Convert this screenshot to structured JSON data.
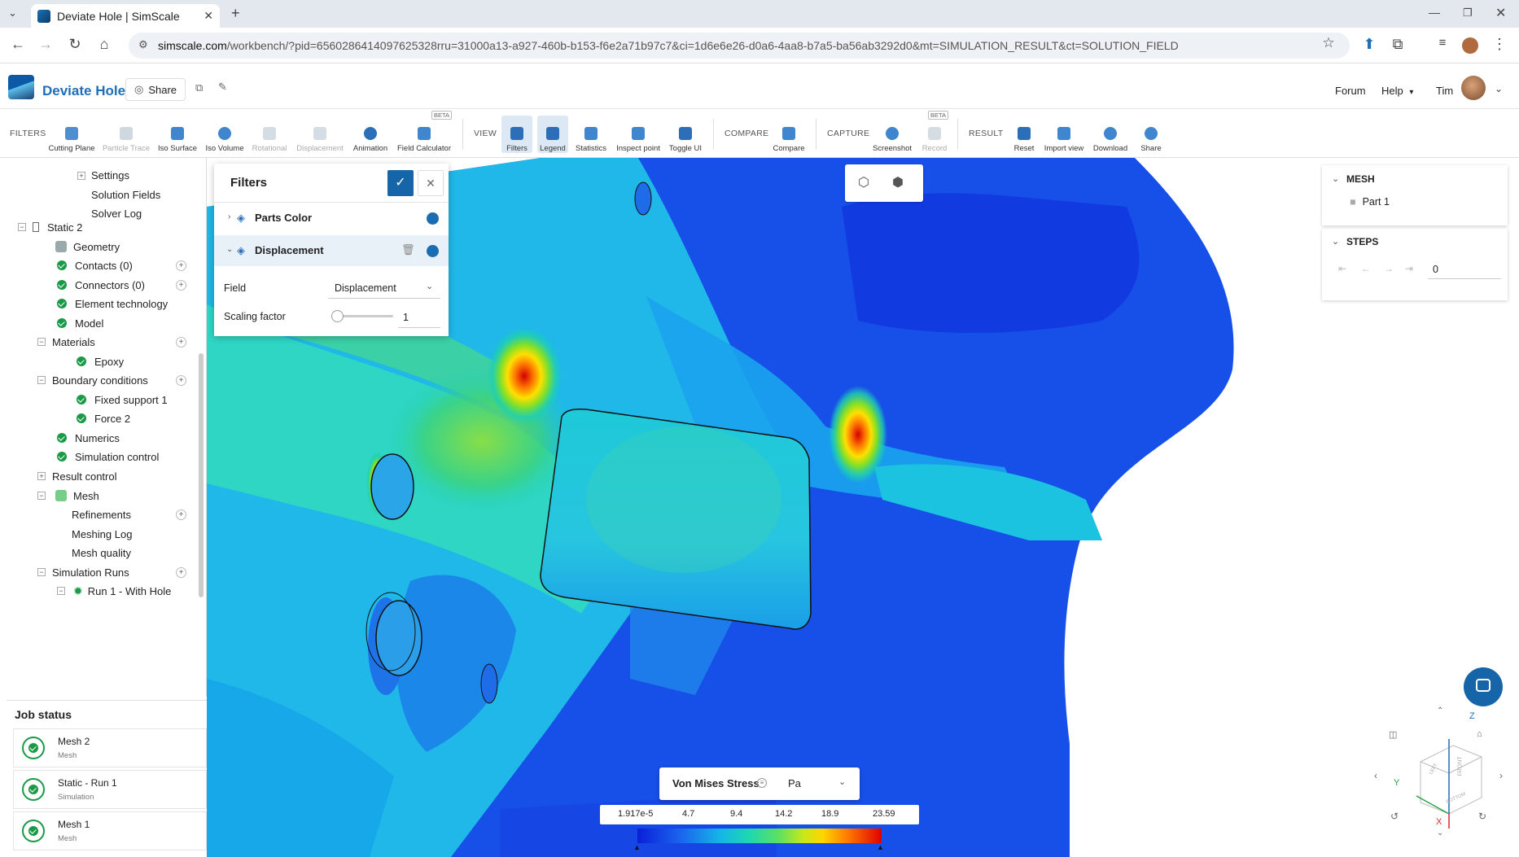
{
  "browser": {
    "tab_title": "Deviate Hole | SimScale",
    "url_host": "simscale.com",
    "url_path": "/workbench/?pid=6560286414097625328rru=31000a13-a927-460b-b153-f6e2a71b97c7&ci=1d6e6e26-d0a6-4aa8-b7a5-ba56ab3292d0&mt=SIMULATION_RESULT&ct=SOLUTION_FIELD"
  },
  "header": {
    "project_name": "Deviate Hole",
    "share_label": "Share",
    "forum_label": "Forum",
    "help_label": "Help",
    "user_name": "Tim"
  },
  "toolbar": {
    "groups": {
      "filters": "FILTERS",
      "view": "VIEW",
      "compare": "COMPARE",
      "capture": "CAPTURE",
      "result": "RESULT"
    },
    "filters_items": [
      "Cutting Plane",
      "Particle Trace",
      "Iso Surface",
      "Iso Volume",
      "Rotational",
      "Displacement",
      "Animation",
      "Field Calculator"
    ],
    "view_items": [
      "Filters",
      "Legend",
      "Statistics",
      "Inspect point",
      "Toggle UI"
    ],
    "compare_items": [
      "Compare"
    ],
    "capture_items": [
      "Screenshot",
      "Record"
    ],
    "result_items": [
      "Reset",
      "Import view",
      "Download",
      "Share"
    ],
    "beta": "BETA"
  },
  "tree": {
    "settings": "Settings",
    "solution_fields": "Solution Fields",
    "solver_log": "Solver Log",
    "static2": "Static 2",
    "geometry": "Geometry",
    "contacts": "Contacts (0)",
    "connectors": "Connectors (0)",
    "element_technology": "Element technology",
    "model": "Model",
    "materials": "Materials",
    "epoxy": "Epoxy",
    "boundary_conditions": "Boundary conditions",
    "fixed_support": "Fixed support 1",
    "force": "Force 2",
    "numerics": "Numerics",
    "simulation_control": "Simulation control",
    "result_control": "Result control",
    "mesh": "Mesh",
    "refinements": "Refinements",
    "meshing_log": "Meshing Log",
    "mesh_quality": "Mesh quality",
    "simulation_runs": "Simulation Runs",
    "run1": "Run 1 - With Hole"
  },
  "job_status": {
    "title": "Job status",
    "jobs": [
      {
        "name": "Mesh 2",
        "type": "Mesh"
      },
      {
        "name": "Static - Run 1",
        "type": "Simulation"
      },
      {
        "name": "Mesh 1",
        "type": "Mesh"
      }
    ]
  },
  "filters_panel": {
    "title": "Filters",
    "parts_color": "Parts Color",
    "displacement": "Displacement",
    "field_label": "Field",
    "field_value": "Displacement",
    "scaling_label": "Scaling factor",
    "scaling_value": "1"
  },
  "right_panel": {
    "mesh_title": "MESH",
    "part": "Part 1",
    "steps_title": "STEPS",
    "step_value": "0"
  },
  "legend": {
    "field": "Von Mises Stress",
    "unit": "Pa",
    "ticks": [
      "1.917e-5",
      "4.7",
      "9.4",
      "14.2",
      "18.9",
      "23.59"
    ]
  },
  "triad": {
    "z": "Z",
    "y": "Y",
    "x": "X",
    "front": "FRONT",
    "left": "LEFT",
    "bottom": "BOTTOM"
  },
  "colors": {
    "accent": "#1f6fb8",
    "success": "#1a9a47",
    "confirm": "#1565a8"
  }
}
